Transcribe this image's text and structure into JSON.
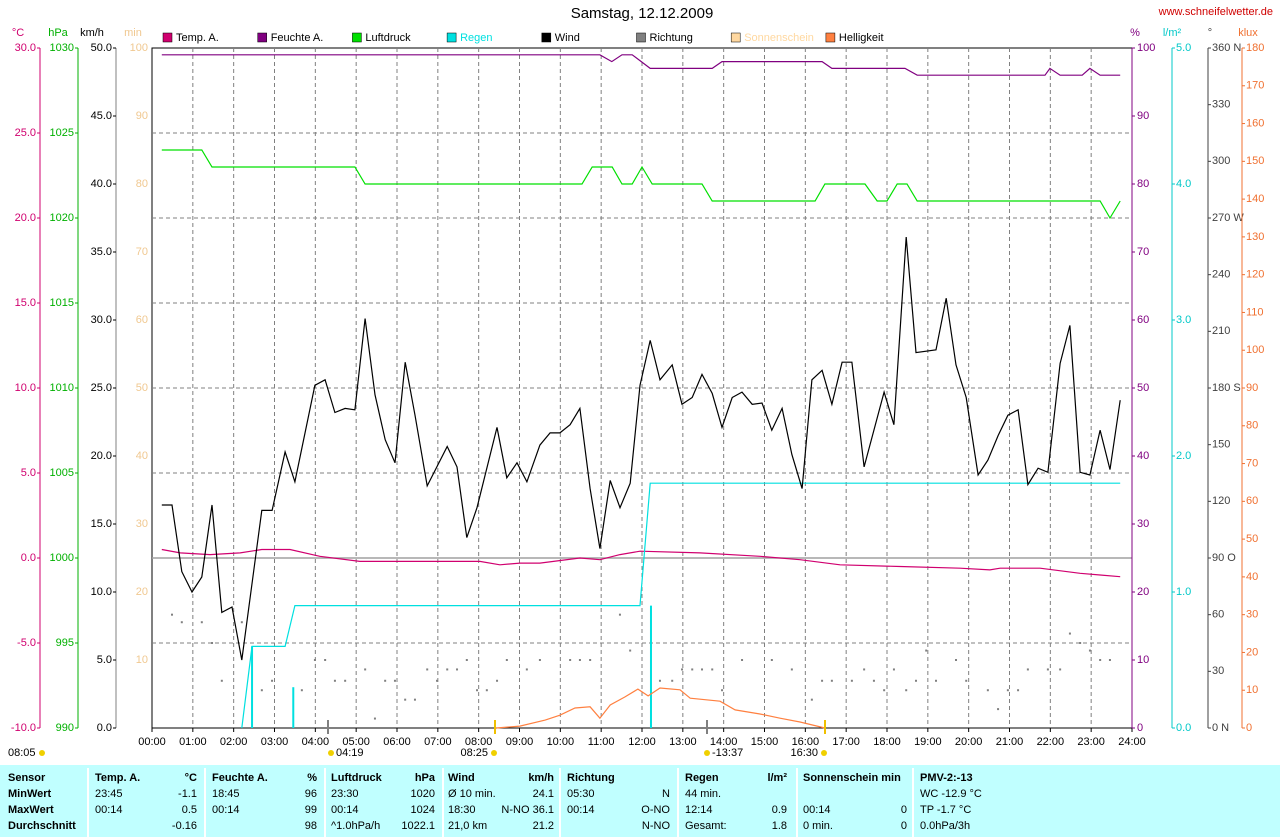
{
  "chart_data": {
    "type": "line",
    "title": "Samstag, 12.12.2009",
    "source": "www.schneifelwetter.de",
    "xlim": [
      0,
      24
    ],
    "xticks": [
      {
        "value": 0,
        "label": "00:00"
      },
      {
        "value": 1,
        "label": "01:00"
      },
      {
        "value": 2,
        "label": "02:00"
      },
      {
        "value": 3,
        "label": "03:00"
      },
      {
        "value": 4,
        "label": "04:00"
      },
      {
        "value": 5,
        "label": "05:00"
      },
      {
        "value": 6,
        "label": "06:00"
      },
      {
        "value": 7,
        "label": "07:00"
      },
      {
        "value": 8,
        "label": "08:00"
      },
      {
        "value": 9,
        "label": "09:00"
      },
      {
        "value": 10,
        "label": "10:00"
      },
      {
        "value": 11,
        "label": "11:00"
      },
      {
        "value": 12,
        "label": "12:00"
      },
      {
        "value": 13,
        "label": "13:00"
      },
      {
        "value": 14,
        "label": "14:00"
      },
      {
        "value": 15,
        "label": "15:00"
      },
      {
        "value": 16,
        "label": "16:00"
      },
      {
        "value": 17,
        "label": "17:00"
      },
      {
        "value": 18,
        "label": "18:00"
      },
      {
        "value": 19,
        "label": "19:00"
      },
      {
        "value": 20,
        "label": "20:00"
      },
      {
        "value": 21,
        "label": "21:00"
      },
      {
        "value": 22,
        "label": "22:00"
      },
      {
        "value": 23,
        "label": "23:00"
      },
      {
        "value": 24,
        "label": "24:00"
      }
    ],
    "grid": true,
    "axes": [
      {
        "unit": "°C",
        "color": "#d0006f",
        "lim": [
          -10,
          30
        ],
        "ticks": [
          {
            "value": -10,
            "label": "-10.0"
          },
          {
            "value": -5,
            "label": "-5.0"
          },
          {
            "value": 0,
            "label": "0.0"
          },
          {
            "value": 5,
            "label": "5.0"
          },
          {
            "value": 10,
            "label": "10.0"
          },
          {
            "value": 15,
            "label": "15.0"
          },
          {
            "value": 20,
            "label": "20.0"
          },
          {
            "value": 25,
            "label": "25.0"
          },
          {
            "value": 30,
            "label": "30.0"
          }
        ]
      },
      {
        "unit": "hPa",
        "color": "#00b000",
        "lim": [
          990,
          1030
        ],
        "ticks": [
          990,
          995,
          1000,
          1005,
          1010,
          1015,
          1020,
          1025,
          1030
        ]
      },
      {
        "unit": "km/h",
        "color": "#000000",
        "lim": [
          0,
          50
        ],
        "ticks": [
          {
            "value": 0,
            "label": "0.0"
          },
          {
            "value": 5,
            "label": "5.0"
          },
          {
            "value": 10,
            "label": "10.0"
          },
          {
            "value": 15,
            "label": "15.0"
          },
          {
            "value": 20,
            "label": "20.0"
          },
          {
            "value": 25,
            "label": "25.0"
          },
          {
            "value": 30,
            "label": "30.0"
          },
          {
            "value": 35,
            "label": "35.0"
          },
          {
            "value": 40,
            "label": "40.0"
          },
          {
            "value": 45,
            "label": "45.0"
          },
          {
            "value": 50,
            "label": "50.0"
          }
        ]
      },
      {
        "unit": "min",
        "color": "#f0c890",
        "lim": [
          0,
          100
        ],
        "ticks": [
          10,
          20,
          30,
          40,
          50,
          60,
          70,
          80,
          90,
          100
        ]
      },
      {
        "unit": "%",
        "color": "#800080",
        "lim": [
          0,
          100
        ],
        "ticks": [
          0,
          10,
          20,
          30,
          40,
          50,
          60,
          70,
          80,
          90,
          100
        ]
      },
      {
        "unit": "l/m²",
        "color": "#00c8c8",
        "lim": [
          0,
          5
        ],
        "ticks": [
          {
            "value": 0,
            "label": "0.0"
          },
          {
            "value": 1,
            "label": "1.0"
          },
          {
            "value": 2,
            "label": "2.0"
          },
          {
            "value": 3,
            "label": "3.0"
          },
          {
            "value": 4,
            "label": "4.0"
          },
          {
            "value": 5,
            "label": "5.0"
          }
        ]
      },
      {
        "unit": "°",
        "color": "#404040",
        "lim": [
          0,
          360
        ],
        "ticks": [
          {
            "value": 0,
            "label": "0 N"
          },
          30,
          60,
          {
            "value": 90,
            "label": "90 O"
          },
          120,
          150,
          {
            "value": 180,
            "label": "180 S"
          },
          210,
          240,
          {
            "value": 270,
            "label": "270 W"
          },
          300,
          330,
          {
            "value": 360,
            "label": "360 N"
          }
        ]
      },
      {
        "unit": "klux",
        "color": "#f07030",
        "lim": [
          0,
          180
        ],
        "ticks": [
          0,
          10,
          20,
          30,
          40,
          50,
          60,
          70,
          80,
          90,
          100,
          110,
          120,
          130,
          140,
          150,
          160,
          170,
          180
        ]
      }
    ],
    "series": [
      {
        "name": "Temp. A.",
        "color": "#d0006f",
        "axis": 0,
        "x": [
          0.24,
          0.69,
          1.42,
          2.16,
          2.69,
          3.38,
          4.11,
          5.09,
          8.03,
          8.52,
          9.01,
          9.5,
          10.48,
          10.97,
          11.46,
          11.95,
          13.42,
          14.89,
          15.87,
          16.85,
          18.32,
          19.79,
          20.52,
          20.77,
          21.75,
          22.73,
          23.22,
          23.71
        ],
        "values": [
          0.5,
          0.3,
          0.2,
          0.3,
          0.5,
          0.5,
          0.1,
          -0.2,
          -0.2,
          -0.4,
          -0.3,
          -0.3,
          0,
          -0.1,
          0.2,
          0.4,
          0.3,
          0.1,
          -0.1,
          -0.4,
          -0.5,
          -0.6,
          -0.7,
          -0.6,
          -0.6,
          -0.9,
          -1.0,
          -1.1
        ]
      },
      {
        "name": "Feuchte A.",
        "color": "#800080",
        "axis": 4,
        "x": [
          0.24,
          10.97,
          11.26,
          11.51,
          11.76,
          12.2,
          13.72,
          13.96,
          16.41,
          16.65,
          18.44,
          18.74,
          21.87,
          21.99,
          22.24,
          22.78,
          22.97,
          23.22,
          23.71
        ],
        "values": [
          99,
          99,
          98,
          99,
          99,
          97,
          97,
          98,
          98,
          97,
          97,
          96,
          96,
          97,
          96,
          96,
          97,
          96,
          96
        ]
      },
      {
        "name": "Luftdruck",
        "color": "#00e000",
        "axis": 1,
        "x": [
          0.24,
          1.22,
          1.47,
          4.97,
          5.22,
          10.53,
          10.78,
          11.27,
          11.51,
          11.76,
          12.0,
          12.25,
          13.47,
          13.72,
          16.24,
          16.48,
          17.46,
          17.76,
          18.0,
          18.25,
          18.49,
          18.74,
          23.22,
          23.46,
          23.71
        ],
        "values": [
          1024,
          1024,
          1023,
          1023,
          1022,
          1022,
          1023,
          1023,
          1022,
          1022,
          1023,
          1022,
          1022,
          1021,
          1021,
          1022,
          1022,
          1021,
          1021,
          1022,
          1022,
          1021,
          1021,
          1020,
          1021
        ]
      },
      {
        "name": "Regen",
        "color": "#00e0e0",
        "axis": 5,
        "x": [
          2.2,
          2.45,
          3.26,
          3.5,
          11.95,
          12.2,
          23.71
        ],
        "values": [
          0,
          0.6,
          0.6,
          0.9,
          0.9,
          1.8,
          1.8
        ],
        "bars_x": [
          2.45,
          3.46,
          12.22
        ],
        "bars": [
          0.6,
          0.3,
          0.9
        ]
      },
      {
        "name": "Wind",
        "color": "#000000",
        "axis": 2,
        "x": [
          0.24,
          0.49,
          0.73,
          0.98,
          1.22,
          1.47,
          1.71,
          1.96,
          2.2,
          2.69,
          2.94,
          3.26,
          3.5,
          3.99,
          4.24,
          4.48,
          4.73,
          4.97,
          5.22,
          5.46,
          5.71,
          5.95,
          6.2,
          6.44,
          6.74,
          7.23,
          7.47,
          7.71,
          7.96,
          8.45,
          8.69,
          8.94,
          9.18,
          9.5,
          9.75,
          9.99,
          10.24,
          10.48,
          10.73,
          10.97,
          11.22,
          11.46,
          11.71,
          11.95,
          12.2,
          12.44,
          12.74,
          12.98,
          13.23,
          13.47,
          13.72,
          13.96,
          14.21,
          14.45,
          14.7,
          14.94,
          15.18,
          15.43,
          15.67,
          15.92,
          16.16,
          16.41,
          16.65,
          16.9,
          17.14,
          17.44,
          17.93,
          18.17,
          18.47,
          18.71,
          19.2,
          19.45,
          19.69,
          19.94,
          20.23,
          20.47,
          20.72,
          20.96,
          21.21,
          21.45,
          21.7,
          21.94,
          22.24,
          22.48,
          22.73,
          22.97,
          23.22,
          23.46,
          23.71
        ],
        "values": [
          16.4,
          16.4,
          11.5,
          10.0,
          11.1,
          16.4,
          8.5,
          8.9,
          5.0,
          16.0,
          16.0,
          20.3,
          18.1,
          25.2,
          25.6,
          23.2,
          23.5,
          23.4,
          30.1,
          24.5,
          21.2,
          19.5,
          26.9,
          23.0,
          17.8,
          20.7,
          19.2,
          14.0,
          16.2,
          22.1,
          18.4,
          19.5,
          18.1,
          20.8,
          21.7,
          21.7,
          22.3,
          23.5,
          17.6,
          13.2,
          18.2,
          16.2,
          18.0,
          25.2,
          28.5,
          25.6,
          26.7,
          23.8,
          24.3,
          26.0,
          24.6,
          22.1,
          24.3,
          24.7,
          23.8,
          23.9,
          21.9,
          23.5,
          20.1,
          17.6,
          25.6,
          26.3,
          23.8,
          26.9,
          26.9,
          19.2,
          24.7,
          22.3,
          36.1,
          27.6,
          27.8,
          31.6,
          26.7,
          24.3,
          18.6,
          19.7,
          21.5,
          23.0,
          23.4,
          17.9,
          19.1,
          18.8,
          26.8,
          29.6,
          18.8,
          18.6,
          21.9,
          19.0,
          24.1
        ]
      },
      {
        "name": "Richtung",
        "color": "#808080",
        "axis": 6,
        "marker": "dot",
        "x": [
          0.49,
          0.73,
          1.22,
          1.47,
          1.71,
          2.2,
          2.69,
          2.94,
          3.67,
          3.99,
          4.24,
          4.48,
          4.73,
          5.22,
          5.46,
          5.71,
          5.95,
          6.2,
          6.44,
          6.74,
          6.98,
          7.23,
          7.47,
          7.71,
          7.96,
          8.2,
          8.45,
          8.69,
          9.18,
          9.5,
          10.24,
          10.48,
          10.73,
          11.46,
          11.71,
          12.44,
          12.74,
          12.98,
          13.23,
          13.47,
          13.72,
          13.96,
          14.45,
          15.18,
          15.67,
          16.16,
          16.41,
          16.65,
          17.14,
          17.44,
          17.68,
          17.93,
          18.17,
          18.47,
          18.71,
          18.96,
          19.2,
          19.69,
          19.94,
          20.47,
          20.72,
          20.96,
          21.21,
          21.45,
          21.94,
          22.24,
          22.48,
          22.73,
          22.97,
          23.22,
          23.46
        ],
        "values": [
          60,
          56,
          56,
          45,
          25,
          56,
          20,
          25,
          20,
          36,
          36,
          25,
          25,
          31,
          5,
          25,
          25,
          15,
          15,
          31,
          25,
          31,
          31,
          36,
          20,
          20,
          25,
          36,
          31,
          36,
          36,
          36,
          36,
          60,
          41,
          25,
          25,
          31,
          31,
          31,
          31,
          20,
          36,
          36,
          31,
          15,
          25,
          25,
          25,
          31,
          25,
          20,
          31,
          20,
          25,
          41,
          25,
          36,
          25,
          20,
          10,
          20,
          20,
          31,
          31,
          31,
          50,
          45,
          41,
          36,
          36
        ]
      },
      {
        "name": "Sonnenschein",
        "color": "#ffd8a0",
        "axis": 3
      },
      {
        "name": "Helligkeit",
        "color": "#ff8040",
        "axis": 7,
        "x": [
          8.43,
          9.01,
          9.63,
          9.99,
          10.36,
          10.73,
          10.97,
          11.22,
          11.58,
          11.9,
          12.15,
          12.44,
          12.93,
          13.18,
          13.91,
          14.28,
          14.89,
          15.38,
          15.87,
          16.48
        ],
        "values": [
          0,
          0.5,
          2.1,
          3.4,
          5.3,
          5.6,
          2.6,
          6.1,
          8.2,
          10.3,
          8.5,
          10.6,
          10.1,
          7.9,
          7.1,
          4.8,
          3.7,
          2.6,
          1.6,
          0
        ]
      }
    ],
    "annotations": [
      "08:05",
      "04:19",
      "08:25",
      "-13:37",
      "16:30"
    ]
  },
  "table": {
    "row_labels": [
      "Sensor",
      "MinWert",
      "MaxWert",
      "Durchschnitt"
    ],
    "columns": [
      {
        "header": "Temp. A.",
        "unit": "°C",
        "rows": [
          [
            "23:45",
            "-1.1"
          ],
          [
            "00:14",
            "0.5"
          ],
          [
            null,
            "-0.16"
          ]
        ]
      },
      {
        "header": "Feuchte A.",
        "unit": "%",
        "rows": [
          [
            "18:45",
            "96"
          ],
          [
            "00:14",
            "99"
          ],
          [
            null,
            "98"
          ]
        ]
      },
      {
        "header": "Luftdruck",
        "unit": "hPa",
        "rows": [
          [
            "23:30",
            "1020"
          ],
          [
            "00:14",
            "1024"
          ],
          [
            "^1.0hPa/h",
            "1022.1"
          ]
        ]
      },
      {
        "header": "Wind",
        "unit": "km/h",
        "rows": [
          [
            "Ø 10 min.",
            "24.1"
          ],
          [
            "18:30",
            "N-NO 36.1"
          ],
          [
            "21,0 km",
            "21.2"
          ]
        ]
      },
      {
        "header": "Richtung",
        "unit": null,
        "rows": [
          [
            "05:30",
            "N"
          ],
          [
            "00:14",
            "O-NO"
          ],
          [
            null,
            "N-NO"
          ]
        ]
      },
      {
        "header": "Regen",
        "unit": "l/m²",
        "rows": [
          [
            "44 min.",
            null
          ],
          [
            "12:14",
            "0.9"
          ],
          [
            "Gesamt:",
            "1.8"
          ]
        ]
      },
      {
        "header": "Sonnenschein min",
        "unit": null,
        "rows": [
          [
            null,
            null
          ],
          [
            "00:14",
            "0"
          ],
          [
            "0 min.",
            "0"
          ]
        ]
      },
      {
        "header": "PMV-2:-13",
        "unit": null,
        "rows": [
          [
            "WC -12.9 °C",
            null
          ],
          [
            "TP -1.7 °C",
            null
          ],
          [
            "0.0hPa/3h",
            null
          ]
        ]
      }
    ]
  }
}
